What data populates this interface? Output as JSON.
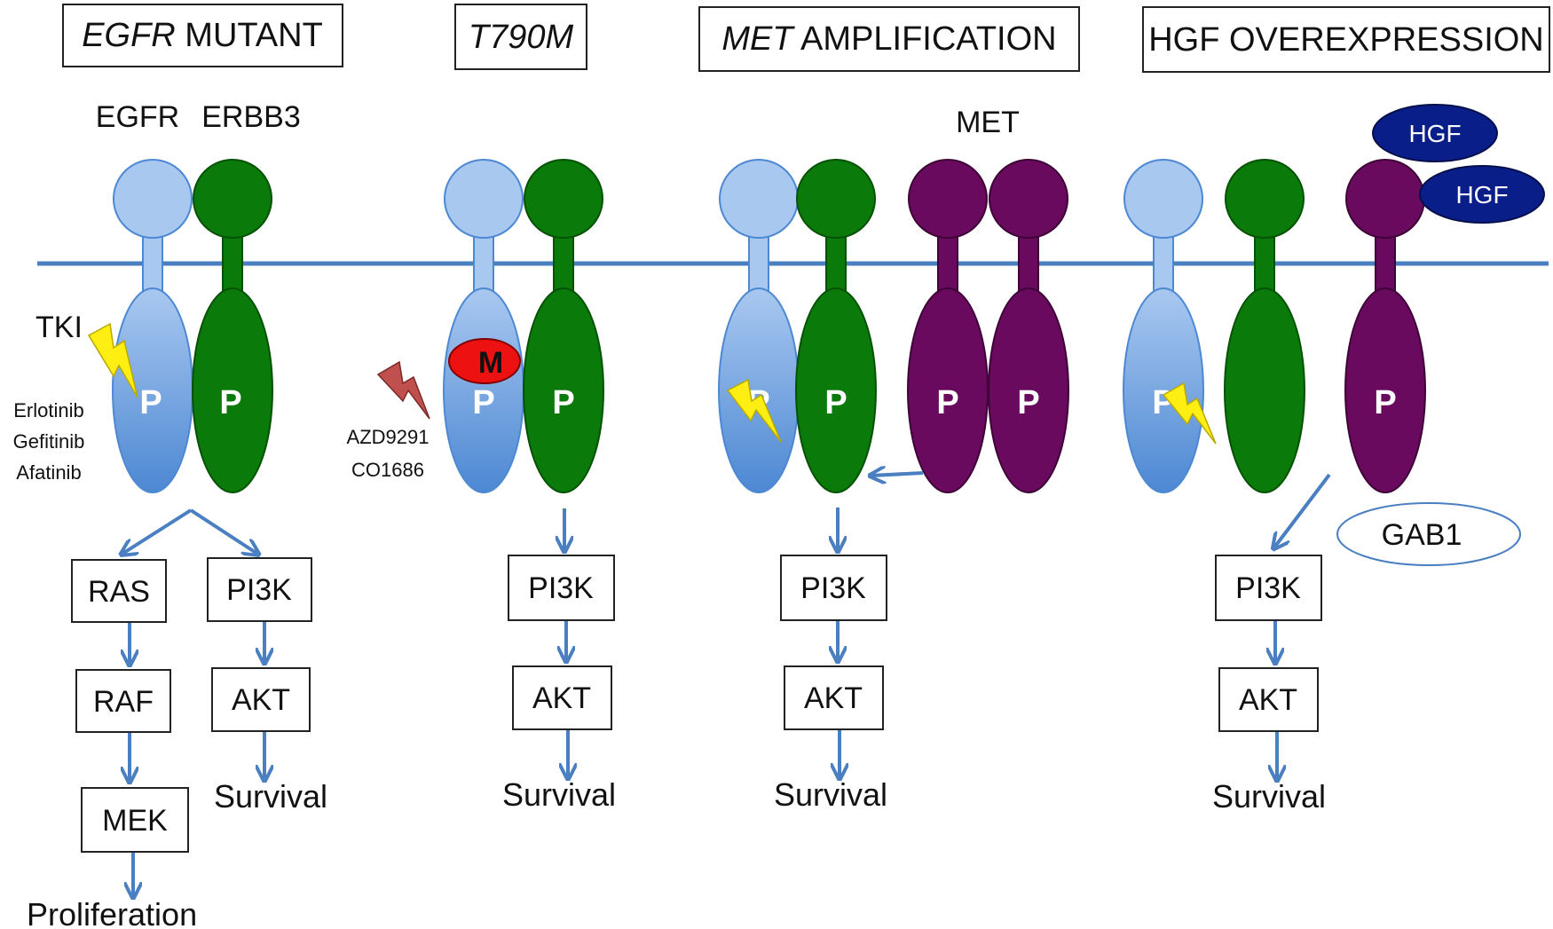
{
  "panels": [
    {
      "title_italic": "EGFR",
      "title_rest": " MUTANT"
    },
    {
      "title_italic": "T790M",
      "title_rest": ""
    },
    {
      "title_italic": "MET",
      "title_rest": " AMPLIFICATION"
    },
    {
      "title_italic": "",
      "title_rest": "HGF OVEREXPRESSION"
    }
  ],
  "receptors": {
    "egfr": "EGFR",
    "erbb3": "ERBB3",
    "met": "MET"
  },
  "p_label": "P",
  "m_label": "M",
  "tki": "TKI",
  "drugs_first": [
    "Erlotinib",
    "Gefitinib",
    "Afatinib"
  ],
  "drugs_t790m": [
    "AZD9291",
    "CO1686"
  ],
  "ligand": "HGF",
  "adaptor": "GAB1",
  "nodes": {
    "ras": "RAS",
    "raf": "RAF",
    "mek": "MEK",
    "pi3k": "PI3K",
    "akt": "AKT"
  },
  "outcomes": {
    "proliferation": "Proliferation",
    "survival": "Survival"
  },
  "colors": {
    "egfr": "#7aa7dd",
    "erbb3": "#0a7a0a",
    "met": "#6a0a5f",
    "hgf": "#0a1e8a",
    "mutation": "#ee1111",
    "arrow": "#4a7fc1",
    "bolt": "#ffee11",
    "bolt_red": "#c0504d",
    "membrane": "#4a7fc1"
  }
}
